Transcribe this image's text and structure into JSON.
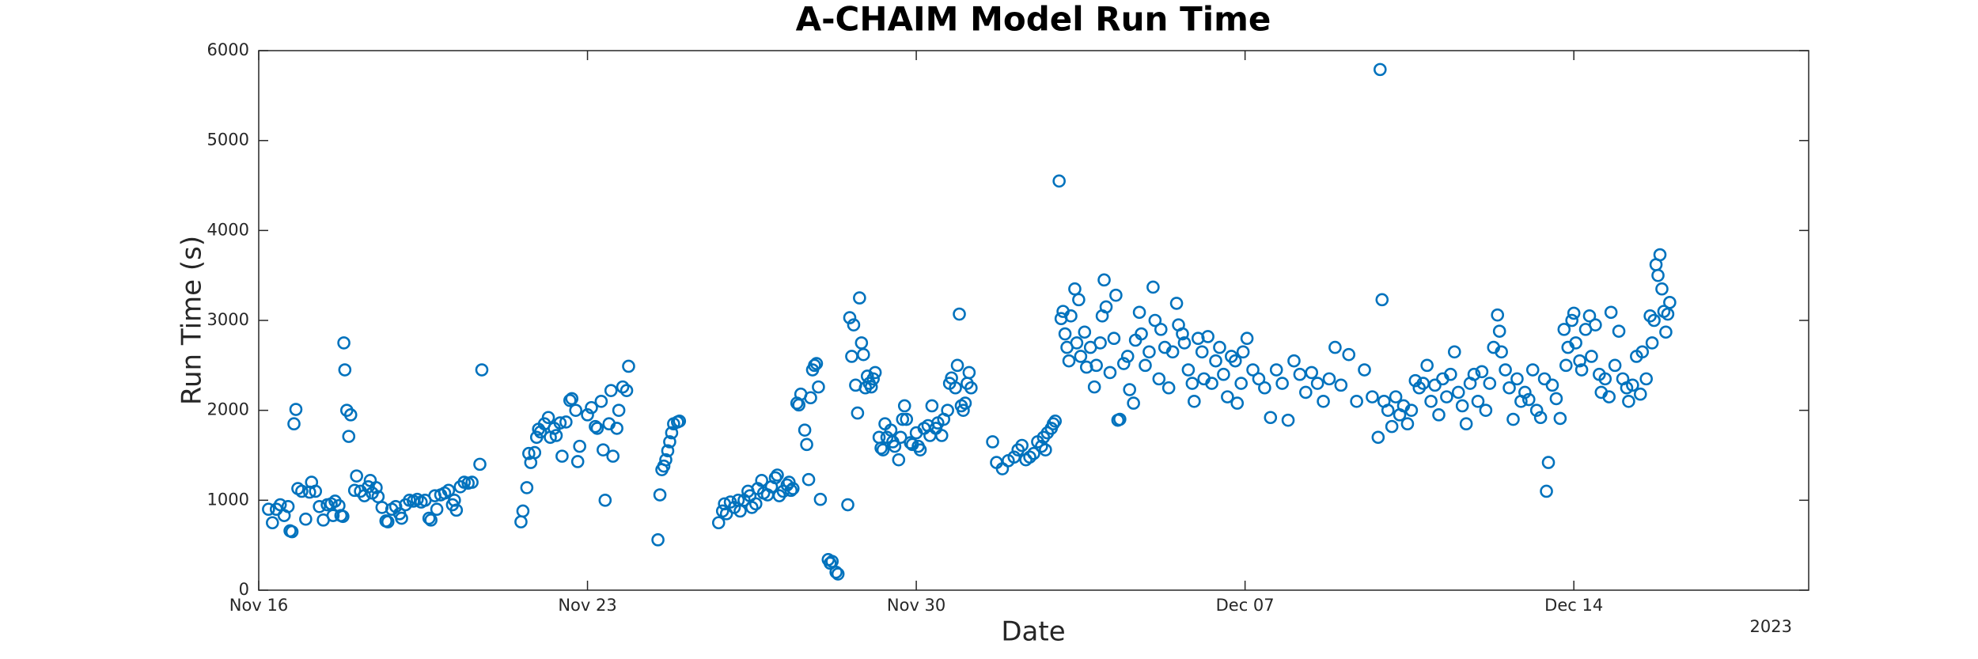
{
  "chart_data": {
    "type": "scatter",
    "title": "A-CHAIM Model Run Time",
    "xlabel": "Date",
    "ylabel": "Run Time (s)",
    "x_secondary_label": "2023",
    "color": "#0072BD",
    "marker": "open-circle",
    "grid": false,
    "xlim": [
      "2023-11-16",
      "2023-12-19"
    ],
    "xticks": [
      {
        "value": "2023-11-16",
        "label": "Nov 16"
      },
      {
        "value": "2023-11-23",
        "label": "Nov 23"
      },
      {
        "value": "2023-11-30",
        "label": "Nov 30"
      },
      {
        "value": "2023-12-07",
        "label": "Dec 07"
      },
      {
        "value": "2023-12-14",
        "label": "Dec 14"
      }
    ],
    "ylim": [
      0,
      6000
    ],
    "yticks": [
      0,
      1000,
      2000,
      3000,
      4000,
      5000,
      6000
    ],
    "x": [
      "2023-11-16 05:00",
      "2023-11-16 07:00",
      "2023-11-16 09:00",
      "2023-11-16 11:00",
      "2023-11-16 13:00",
      "2023-11-16 15:00",
      "2023-11-16 16:00",
      "2023-11-16 17:00",
      "2023-11-16 18:00",
      "2023-11-16 19:00",
      "2023-11-16 20:00",
      "2023-11-16 22:00",
      "2023-11-17 00:00",
      "2023-11-17 02:00",
      "2023-11-17 03:00",
      "2023-11-17 05:00",
      "2023-11-17 07:00",
      "2023-11-17 09:00",
      "2023-11-17 11:00",
      "2023-11-17 13:00",
      "2023-11-17 14:00",
      "2023-11-17 15:00",
      "2023-11-17 17:00",
      "2023-11-17 18:00",
      "2023-11-17 19:00",
      "2023-11-17 19:30",
      "2023-11-17 20:00",
      "2023-11-17 21:00",
      "2023-11-17 22:00",
      "2023-11-17 23:00",
      "2023-11-18 01:00",
      "2023-11-18 02:00",
      "2023-11-18 04:00",
      "2023-11-18 06:00",
      "2023-11-18 08:00",
      "2023-11-18 09:00",
      "2023-11-18 10:00",
      "2023-11-18 12:00",
      "2023-11-18 13:00",
      "2023-11-18 15:00",
      "2023-11-18 17:00",
      "2023-11-18 18:00",
      "2023-11-18 20:00",
      "2023-11-18 22:00",
      "2023-11-19 00:00",
      "2023-11-19 01:00",
      "2023-11-19 03:00",
      "2023-11-19 05:00",
      "2023-11-19 07:00",
      "2023-11-19 09:00",
      "2023-11-19 11:00",
      "2023-11-19 13:00",
      "2023-11-19 15:00",
      "2023-11-19 16:00",
      "2023-11-19 18:00",
      "2023-11-19 19:00",
      "2023-11-19 21:00",
      "2023-11-19 23:00",
      "2023-11-20 01:00",
      "2023-11-20 03:00",
      "2023-11-20 04:00",
      "2023-11-20 05:00",
      "2023-11-20 07:00",
      "2023-11-20 09:00",
      "2023-11-20 11:00",
      "2023-11-20 13:00",
      "2023-11-20 17:00",
      "2023-11-20 18:00",
      "2023-11-21 14:00",
      "2023-11-21 15:00",
      "2023-11-21 17:00",
      "2023-11-21 18:00",
      "2023-11-21 19:00",
      "2023-11-21 21:00",
      "2023-11-21 22:00",
      "2023-11-21 23:00",
      "2023-11-22 00:00",
      "2023-11-22 02:00",
      "2023-11-22 04:00",
      "2023-11-22 05:00",
      "2023-11-22 07:00",
      "2023-11-22 08:00",
      "2023-11-22 10:00",
      "2023-11-22 11:00",
      "2023-11-22 13:00",
      "2023-11-22 15:00",
      "2023-11-22 16:00",
      "2023-11-22 18:00",
      "2023-11-22 19:00",
      "2023-11-22 20:00",
      "2023-11-23 00:00",
      "2023-11-23 02:00",
      "2023-11-23 04:00",
      "2023-11-23 05:00",
      "2023-11-23 07:00",
      "2023-11-23 08:00",
      "2023-11-23 09:00",
      "2023-11-23 11:00",
      "2023-11-23 12:00",
      "2023-11-23 13:00",
      "2023-11-23 15:00",
      "2023-11-23 16:00",
      "2023-11-23 18:00",
      "2023-11-23 20:00",
      "2023-11-23 21:00",
      "2023-11-24 12:00",
      "2023-11-24 13:00",
      "2023-11-24 14:00",
      "2023-11-24 15:00",
      "2023-11-24 16:00",
      "2023-11-24 17:00",
      "2023-11-24 18:00",
      "2023-11-24 19:00",
      "2023-11-24 20:00",
      "2023-11-24 22:00",
      "2023-11-24 23:00",
      "2023-11-25 19:00",
      "2023-11-25 21:00",
      "2023-11-25 22:00",
      "2023-11-25 23:00",
      "2023-11-26 01:00",
      "2023-11-26 03:00",
      "2023-11-26 05:00",
      "2023-11-26 06:00",
      "2023-11-26 08:00",
      "2023-11-26 10:00",
      "2023-11-26 11:00",
      "2023-11-26 12:00",
      "2023-11-26 14:00",
      "2023-11-26 15:00",
      "2023-11-26 17:00",
      "2023-11-26 18:00",
      "2023-11-26 20:00",
      "2023-11-26 22:00",
      "2023-11-27 00:00",
      "2023-11-27 01:00",
      "2023-11-27 02:00",
      "2023-11-27 04:00",
      "2023-11-27 06:00",
      "2023-11-27 07:00",
      "2023-11-27 08:00",
      "2023-11-27 09:00",
      "2023-11-27 11:00",
      "2023-11-27 12:00",
      "2023-11-27 13:00",
      "2023-11-27 15:00",
      "2023-11-27 16:00",
      "2023-11-27 17:00",
      "2023-11-27 18:00",
      "2023-11-27 19:00",
      "2023-11-27 20:00",
      "2023-11-27 21:00",
      "2023-11-27 22:00",
      "2023-11-27 23:00",
      "2023-11-28 03:00",
      "2023-11-28 04:00",
      "2023-11-28 05:00",
      "2023-11-28 07:00",
      "2023-11-28 08:00",
      "2023-11-28 13:00",
      "2023-11-28 14:00",
      "2023-11-28 15:00",
      "2023-11-28 16:00",
      "2023-11-28 17:00",
      "2023-11-28 18:00",
      "2023-11-28 19:00",
      "2023-11-28 20:00",
      "2023-11-28 21:00",
      "2023-11-28 22:00",
      "2023-11-28 23:00",
      "2023-11-29 00:00",
      "2023-11-29 01:00",
      "2023-11-29 02:00",
      "2023-11-29 03:00",
      "2023-11-29 05:00",
      "2023-11-29 06:00",
      "2023-11-29 07:00",
      "2023-11-29 08:00",
      "2023-11-29 09:00",
      "2023-11-29 11:00",
      "2023-11-29 12:00",
      "2023-11-29 13:00",
      "2023-11-29 15:00",
      "2023-11-29 16:00",
      "2023-11-29 17:00",
      "2023-11-29 18:00",
      "2023-11-29 19:00",
      "2023-11-29 21:00",
      "2023-11-29 22:00",
      "2023-11-30 00:00",
      "2023-11-30 01:00",
      "2023-11-30 02:00",
      "2023-11-30 04:00",
      "2023-11-30 06:00",
      "2023-11-30 07:00",
      "2023-11-30 08:00",
      "2023-11-30 10:00",
      "2023-11-30 11:00",
      "2023-11-30 13:00",
      "2023-11-30 14:00",
      "2023-11-30 16:00",
      "2023-11-30 17:00",
      "2023-11-30 18:00",
      "2023-11-30 20:00",
      "2023-11-30 21:00",
      "2023-11-30 22:00",
      "2023-11-30 23:00",
      "2023-12-01 00:00",
      "2023-12-01 01:00",
      "2023-12-01 02:00",
      "2023-12-01 03:00",
      "2023-12-01 04:00",
      "2023-12-01 15:00",
      "2023-12-01 17:00",
      "2023-12-01 20:00",
      "2023-12-01 23:00",
      "2023-12-02 02:00",
      "2023-12-02 04:00",
      "2023-12-02 06:00",
      "2023-12-02 08:00",
      "2023-12-02 10:00",
      "2023-12-02 12:00",
      "2023-12-02 14:00",
      "2023-12-02 16:00",
      "2023-12-02 17:00",
      "2023-12-02 18:00",
      "2023-12-02 19:00",
      "2023-12-02 21:00",
      "2023-12-02 22:00",
      "2023-12-02 23:00",
      "2023-12-03 01:00",
      "2023-12-03 02:00",
      "2023-12-03 03:00",
      "2023-12-03 04:00",
      "2023-12-03 05:00",
      "2023-12-03 06:00",
      "2023-12-03 07:00",
      "2023-12-03 09:00",
      "2023-12-03 10:00",
      "2023-12-03 11:00",
      "2023-12-03 12:00",
      "2023-12-03 14:00",
      "2023-12-03 15:00",
      "2023-12-03 17:00",
      "2023-12-03 19:00",
      "2023-12-03 20:00",
      "2023-12-03 22:00",
      "2023-12-03 23:00",
      "2023-12-04 00:00",
      "2023-12-04 01:00",
      "2023-12-04 03:00",
      "2023-12-04 05:00",
      "2023-12-04 06:00",
      "2023-12-04 07:00",
      "2023-12-04 08:00",
      "2023-12-04 10:00",
      "2023-12-04 12:00",
      "2023-12-04 13:00",
      "2023-12-04 15:00",
      "2023-12-04 16:00",
      "2023-12-04 18:00",
      "2023-12-04 19:00",
      "2023-12-04 21:00",
      "2023-12-04 23:00",
      "2023-12-05 01:00",
      "2023-12-05 02:00",
      "2023-12-05 04:00",
      "2023-12-05 05:00",
      "2023-12-05 07:00",
      "2023-12-05 09:00",
      "2023-12-05 11:00",
      "2023-12-05 13:00",
      "2023-12-05 14:00",
      "2023-12-05 16:00",
      "2023-12-05 17:00",
      "2023-12-05 19:00",
      "2023-12-05 21:00",
      "2023-12-05 22:00",
      "2023-12-06 00:00",
      "2023-12-06 02:00",
      "2023-12-06 03:00",
      "2023-12-06 05:00",
      "2023-12-06 07:00",
      "2023-12-06 09:00",
      "2023-12-06 11:00",
      "2023-12-06 13:00",
      "2023-12-06 15:00",
      "2023-12-06 17:00",
      "2023-12-06 19:00",
      "2023-12-06 20:00",
      "2023-12-06 22:00",
      "2023-12-06 23:00",
      "2023-12-07 01:00",
      "2023-12-07 04:00",
      "2023-12-07 07:00",
      "2023-12-07 10:00",
      "2023-12-07 13:00",
      "2023-12-07 16:00",
      "2023-12-07 19:00",
      "2023-12-07 22:00",
      "2023-12-08 01:00",
      "2023-12-08 04:00",
      "2023-12-08 07:00",
      "2023-12-08 10:00",
      "2023-12-08 13:00",
      "2023-12-08 16:00",
      "2023-12-08 19:00",
      "2023-12-08 22:00",
      "2023-12-09 01:00",
      "2023-12-09 05:00",
      "2023-12-09 09:00",
      "2023-12-09 13:00",
      "2023-12-09 17:00",
      "2023-12-09 20:00",
      "2023-12-09 21:00",
      "2023-12-09 22:00",
      "2023-12-09 23:00",
      "2023-12-10 01:00",
      "2023-12-10 03:00",
      "2023-12-10 05:00",
      "2023-12-10 07:00",
      "2023-12-10 09:00",
      "2023-12-10 11:00",
      "2023-12-10 13:00",
      "2023-12-10 15:00",
      "2023-12-10 17:00",
      "2023-12-10 19:00",
      "2023-12-10 21:00",
      "2023-12-10 23:00",
      "2023-12-11 01:00",
      "2023-12-11 03:00",
      "2023-12-11 05:00",
      "2023-12-11 07:00",
      "2023-12-11 09:00",
      "2023-12-11 11:00",
      "2023-12-11 13:00",
      "2023-12-11 15:00",
      "2023-12-11 17:00",
      "2023-12-11 19:00",
      "2023-12-11 21:00",
      "2023-12-11 23:00",
      "2023-12-12 01:00",
      "2023-12-12 03:00",
      "2023-12-12 05:00",
      "2023-12-12 07:00",
      "2023-12-12 09:00",
      "2023-12-12 10:00",
      "2023-12-12 11:00",
      "2023-12-12 13:00",
      "2023-12-12 15:00",
      "2023-12-12 17:00",
      "2023-12-12 19:00",
      "2023-12-12 21:00",
      "2023-12-12 23:00",
      "2023-12-13 01:00",
      "2023-12-13 03:00",
      "2023-12-13 05:00",
      "2023-12-13 07:00",
      "2023-12-13 09:00",
      "2023-12-13 10:00",
      "2023-12-13 11:00",
      "2023-12-13 13:00",
      "2023-12-13 15:00",
      "2023-12-13 17:00",
      "2023-12-13 19:00",
      "2023-12-13 20:00",
      "2023-12-13 21:00",
      "2023-12-13 23:00",
      "2023-12-14 00:00",
      "2023-12-14 01:00",
      "2023-12-14 03:00",
      "2023-12-14 04:00",
      "2023-12-14 06:00",
      "2023-12-14 08:00",
      "2023-12-14 09:00",
      "2023-12-14 11:00",
      "2023-12-14 13:00",
      "2023-12-14 14:00",
      "2023-12-14 16:00",
      "2023-12-14 18:00",
      "2023-12-14 19:00",
      "2023-12-14 21:00",
      "2023-12-14 23:00",
      "2023-12-15 01:00",
      "2023-12-15 03:00",
      "2023-12-15 04:00",
      "2023-12-15 06:00",
      "2023-12-15 08:00",
      "2023-12-15 10:00",
      "2023-12-15 11:00",
      "2023-12-15 13:00",
      "2023-12-15 15:00",
      "2023-12-15 16:00",
      "2023-12-15 17:00",
      "2023-12-15 18:00",
      "2023-12-15 19:00",
      "2023-12-15 20:00",
      "2023-12-15 21:00",
      "2023-12-15 22:00",
      "2023-12-15 23:00",
      "2023-12-16 00:00",
      "2023-12-16 01:00"
    ],
    "values": [
      900,
      750,
      900,
      950,
      830,
      930,
      660,
      650,
      1850,
      2010,
      1130,
      1100,
      790,
      1090,
      1200,
      1100,
      930,
      780,
      950,
      960,
      830,
      990,
      940,
      830,
      820,
      2750,
      2450,
      2000,
      1710,
      1950,
      1110,
      1270,
      1100,
      1050,
      1150,
      1220,
      1080,
      1140,
      1040,
      920,
      770,
      760,
      900,
      930,
      850,
      800,
      950,
      1000,
      990,
      1010,
      980,
      1000,
      800,
      780,
      1050,
      900,
      1060,
      1080,
      1110,
      950,
      1000,
      890,
      1150,
      1200,
      1190,
      1200,
      1400,
      2450,
      760,
      880,
      1140,
      1520,
      1420,
      1530,
      1700,
      1790,
      1760,
      1850,
      1920,
      1700,
      1800,
      1720,
      1860,
      1490,
      1870,
      2110,
      2130,
      2000,
      1430,
      1600,
      1950,
      2030,
      1820,
      1800,
      2100,
      1560,
      1000,
      1850,
      2220,
      1490,
      1800,
      2000,
      2260,
      2220,
      2490,
      560,
      1060,
      1340,
      1380,
      1450,
      1550,
      1650,
      1750,
      1850,
      1870,
      1880,
      750,
      880,
      960,
      850,
      980,
      920,
      1000,
      880,
      1000,
      1100,
      1050,
      920,
      960,
      1130,
      1220,
      1080,
      1060,
      1150,
      1250,
      1280,
      1050,
      1100,
      1170,
      1200,
      1110,
      1130,
      2080,
      2060,
      2180,
      1780,
      1620,
      1230,
      2140,
      2450,
      2500,
      2520,
      2260,
      1010,
      340,
      300,
      320,
      200,
      180,
      950,
      3030,
      2600,
      2950,
      2280,
      1970,
      3250,
      2750,
      2620,
      2250,
      2380,
      2300,
      2260,
      2350,
      2420,
      1700,
      1580,
      1560,
      1850,
      1700,
      1780,
      1650,
      1600,
      1450,
      1700,
      1900,
      2050,
      1900,
      1640,
      1620,
      1750,
      1600,
      1560,
      1800,
      1830,
      1720,
      2050,
      1800,
      1860,
      1720,
      1900,
      2000,
      2300,
      2360,
      2250,
      2500,
      3070,
      2050,
      2000,
      2080,
      2300,
      2420,
      2250,
      1650,
      1420,
      1350,
      1440,
      1480,
      1560,
      1610,
      1450,
      1480,
      1520,
      1650,
      1600,
      1700,
      1560,
      1750,
      1800,
      1850,
      1880,
      4550,
      3020,
      3100,
      2850,
      2700,
      2550,
      3050,
      3350,
      2750,
      3230,
      2600,
      2870,
      2480,
      2700,
      2260,
      2500,
      2750,
      3050,
      3450,
      3150,
      2420,
      2800,
      3280,
      1890,
      1900,
      2520,
      2600,
      2230,
      2080,
      2780,
      3090,
      2850,
      2500,
      2650,
      3370,
      3000,
      2350,
      2900,
      2700,
      2250,
      2650,
      3190,
      2950,
      2850,
      2750,
      2450,
      2300,
      2100,
      2800,
      2650,
      2350,
      2820,
      2300,
      2550,
      2700,
      2400,
      2150,
      2600,
      2550,
      2080,
      2300,
      2650,
      2800,
      2450,
      2350,
      2250,
      1920,
      2450,
      2300,
      1890,
      2550,
      2400,
      2200,
      2420,
      2300,
      2100,
      2350,
      2700,
      2280,
      2620,
      2100,
      2450,
      2150,
      1700,
      5790,
      3230,
      2100,
      2000,
      1820,
      2150,
      1950,
      2050,
      1850,
      2000,
      2330,
      2250,
      2300,
      2500,
      2100,
      2280,
      1950,
      2350,
      2150,
      2400,
      2650,
      2200,
      2050,
      1850,
      2300,
      2400,
      2100,
      2430,
      2000,
      2300,
      2700,
      3060,
      2880,
      2650,
      2450,
      2250,
      1900,
      2350,
      2100,
      2200,
      2120,
      2450,
      2000,
      1920,
      2350,
      1100,
      1420,
      2280,
      2130,
      1910,
      2900,
      2500,
      2700,
      3000,
      3080,
      2750,
      2550,
      2450,
      2900,
      3050,
      2600,
      2950,
      2400,
      2200,
      2350,
      2150,
      3090,
      2500,
      2880,
      2350,
      2250,
      2100,
      2280,
      2600,
      2180,
      2650,
      2350,
      3050,
      2750,
      3000,
      3620,
      3500,
      3730,
      3350,
      3100,
      2870,
      3070,
      3200
    ]
  }
}
